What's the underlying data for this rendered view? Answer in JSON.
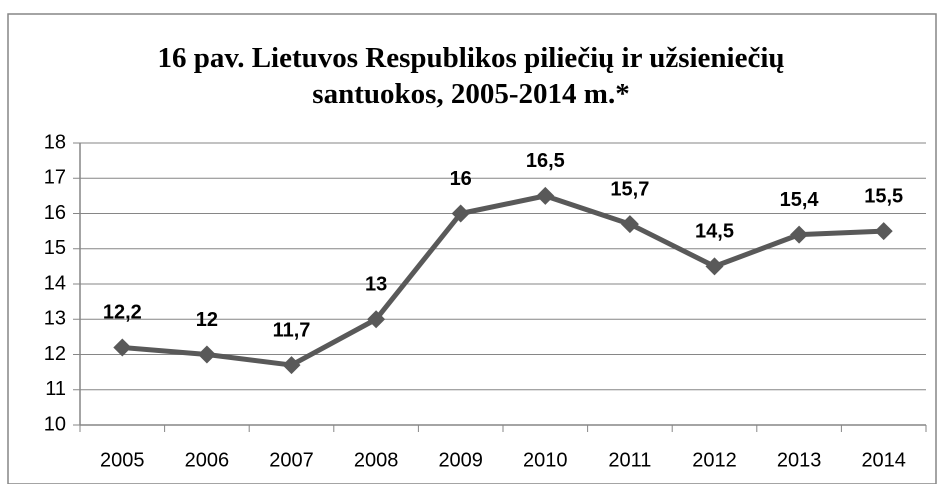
{
  "chart_data": {
    "type": "line",
    "title": "16 pav. Lietuvos Respublikos piliečių ir užsieniečių santuokos, 2005-2014 m.*",
    "categories": [
      "2005",
      "2006",
      "2007",
      "2008",
      "2009",
      "2010",
      "2011",
      "2012",
      "2013",
      "2014"
    ],
    "series": [
      {
        "color": "#595959",
        "values": [
          12.2,
          12,
          11.7,
          13,
          16,
          16.5,
          15.7,
          14.5,
          15.4,
          15.5
        ],
        "value_labels": [
          "12,2",
          "12",
          "11,7",
          "13",
          "16",
          "16,5",
          "15,7",
          "14,5",
          "15,4",
          "15,5"
        ]
      }
    ],
    "ylim": [
      10,
      18
    ],
    "yticks": [
      10,
      11,
      12,
      13,
      14,
      15,
      16,
      17,
      18
    ],
    "grid": true
  }
}
